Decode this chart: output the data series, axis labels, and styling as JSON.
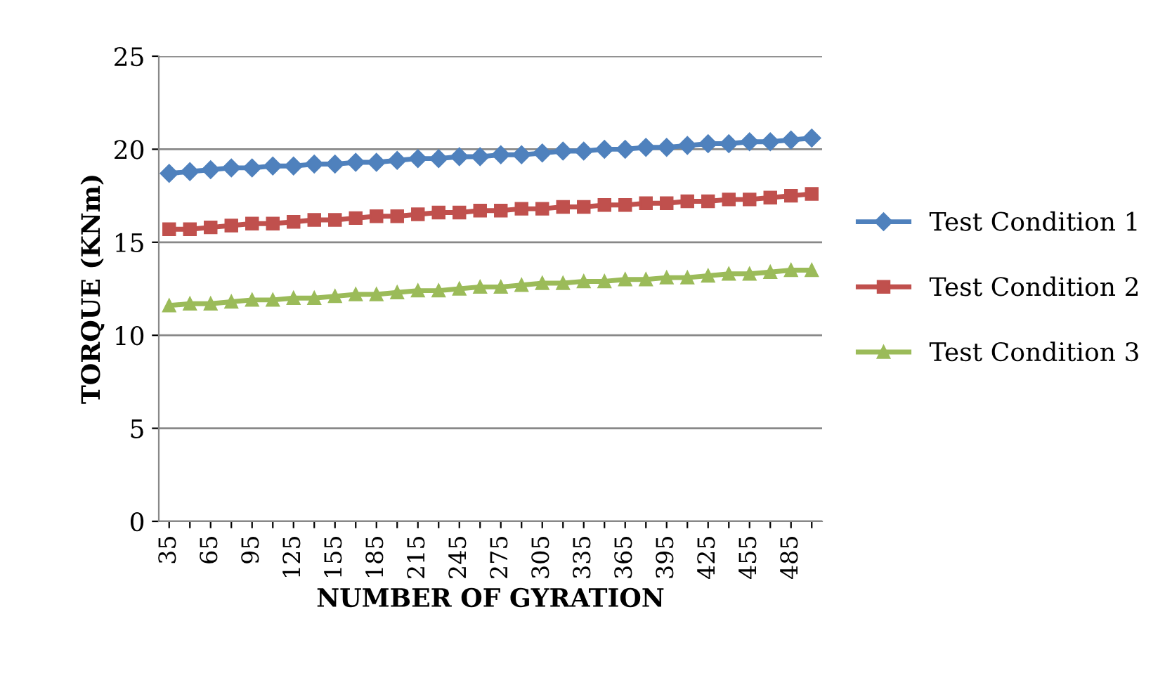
{
  "chart_data": {
    "type": "line",
    "xlabel": "NUMBER OF GYRATION",
    "ylabel": "TORQUE (KNm)",
    "categories": [
      "35",
      null,
      "65",
      null,
      "95",
      null,
      "125",
      null,
      "155",
      null,
      "185",
      null,
      "215",
      null,
      "245",
      null,
      "275",
      null,
      "305",
      null,
      "335",
      null,
      "365",
      null,
      "395",
      null,
      "425",
      null,
      "455",
      null,
      "485",
      null
    ],
    "series": [
      {
        "name": "Test Condition 1",
        "color": "#4f81bd",
        "marker": "diamond",
        "values": [
          18.7,
          18.8,
          18.9,
          19.0,
          19.0,
          19.1,
          19.1,
          19.2,
          19.2,
          19.3,
          19.3,
          19.4,
          19.5,
          19.5,
          19.6,
          19.6,
          19.7,
          19.7,
          19.8,
          19.9,
          19.9,
          20.0,
          20.0,
          20.1,
          20.1,
          20.2,
          20.3,
          20.3,
          20.4,
          20.4,
          20.5,
          20.6
        ]
      },
      {
        "name": "Test Condition 2",
        "color": "#c0504d",
        "marker": "square",
        "values": [
          15.7,
          15.7,
          15.8,
          15.9,
          16.0,
          16.0,
          16.1,
          16.2,
          16.2,
          16.3,
          16.4,
          16.4,
          16.5,
          16.6,
          16.6,
          16.7,
          16.7,
          16.8,
          16.8,
          16.9,
          16.9,
          17.0,
          17.0,
          17.1,
          17.1,
          17.2,
          17.2,
          17.3,
          17.3,
          17.4,
          17.5,
          17.6
        ]
      },
      {
        "name": "Test Condition 3",
        "color": "#9bbb59",
        "marker": "triangle",
        "values": [
          11.6,
          11.7,
          11.7,
          11.8,
          11.9,
          11.9,
          12.0,
          12.0,
          12.1,
          12.2,
          12.2,
          12.3,
          12.4,
          12.4,
          12.5,
          12.6,
          12.6,
          12.7,
          12.8,
          12.8,
          12.9,
          12.9,
          13.0,
          13.0,
          13.1,
          13.1,
          13.2,
          13.3,
          13.3,
          13.4,
          13.5,
          13.5
        ]
      }
    ],
    "ylim": [
      0,
      25
    ],
    "yticks": [
      0,
      5,
      10,
      15,
      20,
      25
    ],
    "grid": "y",
    "legend": "right",
    "line_style": "solid"
  }
}
